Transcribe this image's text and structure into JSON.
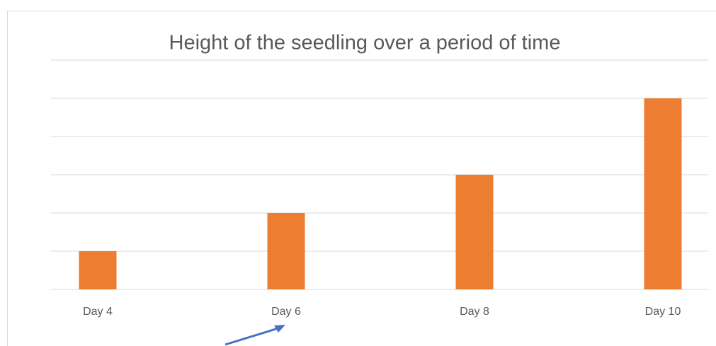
{
  "chart_data": {
    "type": "bar",
    "title": "Height of the seedling over a period of time",
    "categories": [
      "Day 4",
      "Day 6",
      "Day 8",
      "Day 10"
    ],
    "values": [
      1,
      2,
      3,
      5
    ],
    "color": "#ed7d31",
    "ylim": [
      0,
      6
    ],
    "yticks": [
      0,
      1,
      2,
      3,
      4,
      5,
      6
    ],
    "grid": true
  }
}
